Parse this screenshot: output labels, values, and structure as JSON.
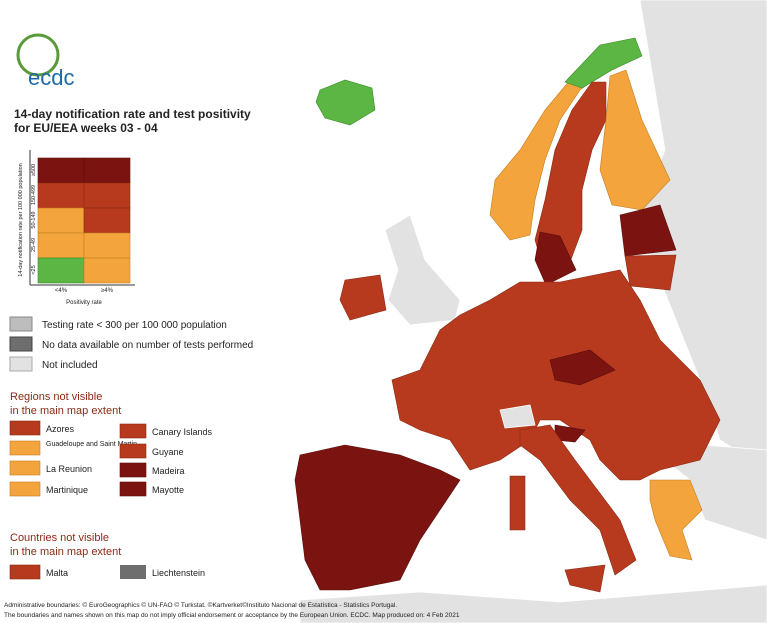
{
  "logo": "ecdc",
  "title": [
    "14-day notification rate and test positivity",
    "for EU/EEA weeks 03 - 04"
  ],
  "matrix": {
    "y_title": "14-day notification rate per 100 000 population",
    "rows": [
      "≥500",
      "150-499",
      "50-149",
      "25-49",
      "<25"
    ],
    "columns": [
      "<4%",
      "≥4%"
    ],
    "x_title": "Positivity rate"
  },
  "legend": [
    "Testing rate < 300 per 100 000 population",
    "No data available on number of tests performed",
    "Not included"
  ],
  "regions": {
    "title": [
      "Regions not visible",
      "in the main map extent"
    ],
    "items": [
      "Azores",
      "Guadeloupe and Saint Martin",
      "La Reunion",
      "Martinique",
      "Canary Islands",
      "Guyane",
      "Madeira",
      "Mayotte"
    ]
  },
  "countries": {
    "title": [
      "Countries not visible",
      "in the main map extent"
    ],
    "items": [
      "Malta",
      "Liechtenstein"
    ]
  },
  "footer": [
    "Administrative boundaries: © EuroGeographics © UN-FAO © Turkstat. ©Kartverket©Instituto Nacional de Estatística - Statistics Portugal.",
    "The boundaries and names shown on this map do not imply official endorsement or acceptance by the European Union. ECDC. Map produced on: 4 Feb 2021"
  ]
}
